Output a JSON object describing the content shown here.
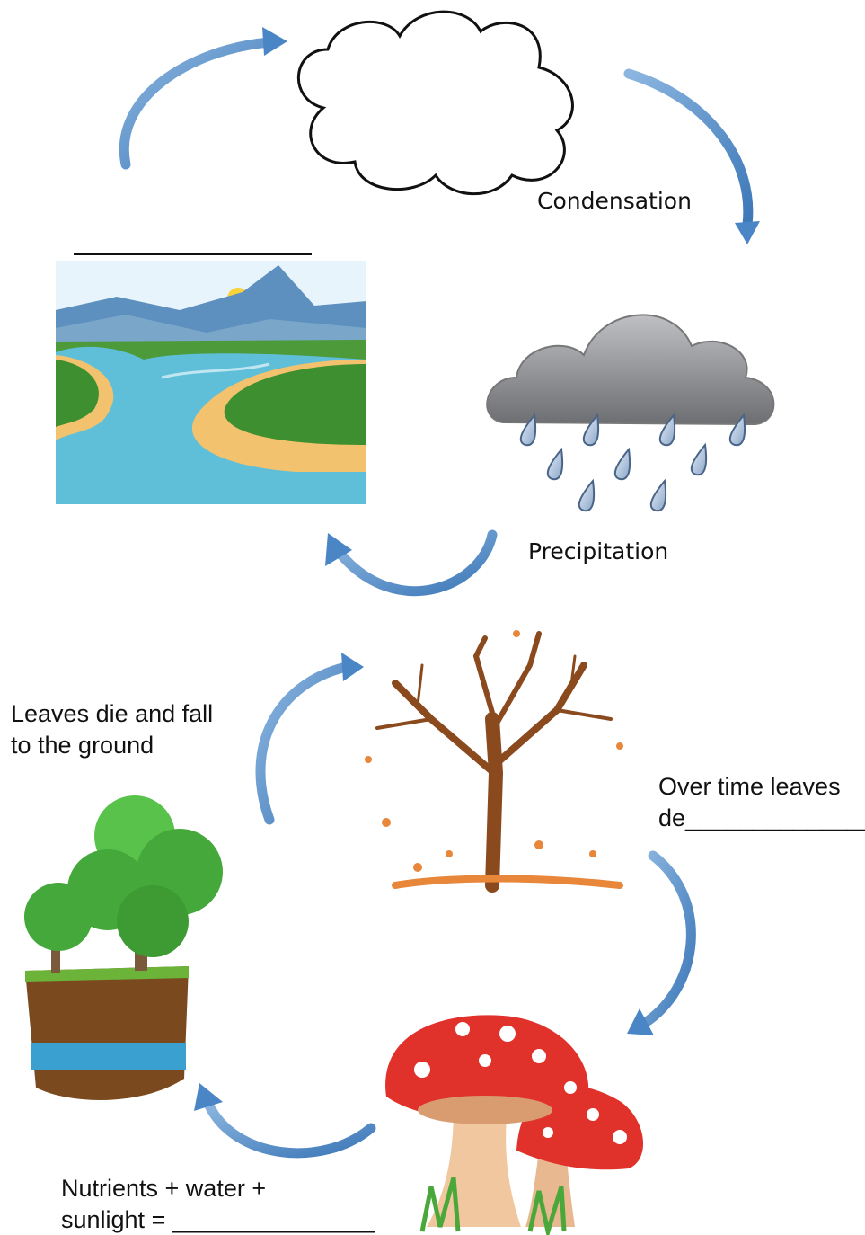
{
  "water_cycle": {
    "labels": {
      "condensation": "Condensation",
      "precipitation": "Precipitation"
    }
  },
  "nutrient_cycle": {
    "leaves_fall": [
      "Leaves die and fall",
      "to the ground"
    ],
    "decompose": [
      "Over time leaves",
      "de______________"
    ],
    "growth": [
      "Nutrients + water +",
      "sunlight = _______________"
    ]
  }
}
